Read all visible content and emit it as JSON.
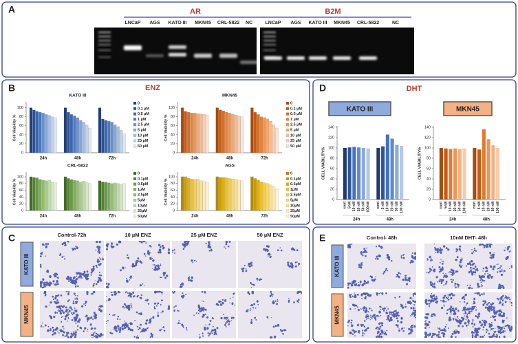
{
  "panel_labels": [
    "A",
    "B",
    "C",
    "D",
    "E"
  ],
  "gel": {
    "ar": {
      "title": "AR",
      "lanes": [
        "LNCaP",
        "AGS",
        "KATO III",
        "MKN45",
        "CRL-5822",
        "NC"
      ]
    },
    "b2m": {
      "title": "B2M",
      "lanes": [
        "LNCaP",
        "AGS",
        "KATO III",
        "MKN45",
        "CRL-5822",
        "NC"
      ]
    }
  },
  "panel_b_title": "ENZ",
  "panel_d_title": "DHT",
  "chart_data": [
    {
      "type": "bar",
      "title": "KATO III",
      "ylabel": "Cell Viability %",
      "categories": [
        "24h",
        "48h",
        "72h"
      ],
      "ylim": [
        0,
        110
      ],
      "yticks": [
        0,
        20,
        40,
        60,
        80,
        100
      ],
      "legend": "right",
      "series": [
        {
          "name": "0",
          "color": "#1f3f7a",
          "values": [
            100,
            100,
            100
          ]
        },
        {
          "name": "0.1 µM",
          "color": "#2b5296",
          "values": [
            95,
            90,
            75
          ]
        },
        {
          "name": "0.5 µM",
          "color": "#3a66b0",
          "values": [
            92,
            85,
            72
          ]
        },
        {
          "name": "1 µM",
          "color": "#4a78c4",
          "values": [
            90,
            82,
            70
          ]
        },
        {
          "name": "2.5 µM",
          "color": "#6890d0",
          "values": [
            88,
            78,
            68
          ]
        },
        {
          "name": "5 µM",
          "color": "#86a6da",
          "values": [
            85,
            72,
            62
          ]
        },
        {
          "name": "10 µM",
          "color": "#a5bde4",
          "values": [
            83,
            68,
            58
          ]
        },
        {
          "name": "25 µM",
          "color": "#c2d2ec",
          "values": [
            80,
            62,
            50
          ]
        },
        {
          "name": "50 µM",
          "color": "#dce6f5",
          "values": [
            78,
            55,
            42
          ]
        }
      ]
    },
    {
      "type": "bar",
      "title": "MKN45",
      "ylabel": "Cell Viability %",
      "categories": [
        "24h",
        "48h",
        "72h"
      ],
      "ylim": [
        0,
        110
      ],
      "yticks": [
        0,
        20,
        40,
        60,
        80,
        100
      ],
      "legend": "right",
      "series": [
        {
          "name": "0",
          "color": "#a84a0c",
          "values": [
            100,
            100,
            100
          ]
        },
        {
          "name": "0.1 µM",
          "color": "#c55a11",
          "values": [
            92,
            95,
            90
          ]
        },
        {
          "name": "0.5 µM",
          "color": "#d86e24",
          "values": [
            90,
            93,
            85
          ]
        },
        {
          "name": "1 µM",
          "color": "#e5823a",
          "values": [
            88,
            90,
            80
          ]
        },
        {
          "name": "2.5 µM",
          "color": "#ee9555",
          "values": [
            88,
            88,
            78
          ]
        },
        {
          "name": "5 µM",
          "color": "#f3a872",
          "values": [
            87,
            86,
            75
          ]
        },
        {
          "name": "10 µM",
          "color": "#f6bb90",
          "values": [
            86,
            84,
            70
          ]
        },
        {
          "name": "25 µM",
          "color": "#f9ceb0",
          "values": [
            85,
            82,
            62
          ]
        },
        {
          "name": "50 µM",
          "color": "#fce2d0",
          "values": [
            84,
            80,
            55
          ]
        }
      ]
    },
    {
      "type": "bar",
      "title": "CRL-5822",
      "ylabel": "Cell Viability %",
      "categories": [
        "24h",
        "48h",
        "72h"
      ],
      "ylim": [
        0,
        110
      ],
      "yticks": [
        0,
        20,
        40,
        60,
        80,
        100
      ],
      "legend": "right",
      "series": [
        {
          "name": "0",
          "color": "#3f6b22",
          "values": [
            100,
            100,
            88
          ]
        },
        {
          "name": "0.1µM",
          "color": "#548235",
          "values": [
            98,
            95,
            85
          ]
        },
        {
          "name": "0.5µM",
          "color": "#679a45",
          "values": [
            97,
            92,
            84
          ]
        },
        {
          "name": "1µM",
          "color": "#7cad59",
          "values": [
            92,
            90,
            82
          ]
        },
        {
          "name": "2.5µM",
          "color": "#93be72",
          "values": [
            90,
            88,
            80
          ]
        },
        {
          "name": "5µM",
          "color": "#a9cc8d",
          "values": [
            88,
            85,
            82
          ]
        },
        {
          "name": "10µM",
          "color": "#bfdaa8",
          "values": [
            90,
            87,
            80
          ]
        },
        {
          "name": "25µM",
          "color": "#d4e7c4",
          "values": [
            85,
            83,
            78
          ]
        },
        {
          "name": "50µM",
          "color": "#e7f2de",
          "values": [
            82,
            80,
            80
          ]
        }
      ]
    },
    {
      "type": "bar",
      "title": "AGS",
      "ylabel": "Cell Viability %",
      "categories": [
        "24h",
        "48h",
        "72h"
      ],
      "ylim": [
        0,
        110
      ],
      "yticks": [
        0,
        20,
        40,
        60,
        80,
        100
      ],
      "legend": "right",
      "series": [
        {
          "name": "0",
          "color": "#b58900",
          "values": [
            100,
            100,
            100
          ]
        },
        {
          "name": "0.1µM",
          "color": "#cc9c00",
          "values": [
            100,
            98,
            95
          ]
        },
        {
          "name": "0.5µM",
          "color": "#e0ae0c",
          "values": [
            96,
            98,
            90
          ]
        },
        {
          "name": "1µM",
          "color": "#efbf2a",
          "values": [
            93,
            97,
            85
          ]
        },
        {
          "name": "2.5µM",
          "color": "#f5cd50",
          "values": [
            92,
            95,
            82
          ]
        },
        {
          "name": "5µM",
          "color": "#f8d872",
          "values": [
            93,
            93,
            80
          ]
        },
        {
          "name": "10µM",
          "color": "#fae293",
          "values": [
            88,
            92,
            76
          ]
        },
        {
          "name": "25µM",
          "color": "#fcebb3",
          "values": [
            86,
            90,
            72
          ]
        },
        {
          "name": "50µM",
          "color": "#fef4d4",
          "values": [
            85,
            88,
            65
          ]
        }
      ]
    },
    {
      "type": "bar",
      "title": "KATO III",
      "title_color": "#8faadc",
      "ylabel": "CELL VIABILITY%",
      "categories": [
        "cont",
        "5nM",
        "10 nM",
        "20 nM",
        "50 nM",
        "100nM",
        "cont",
        "5 nM",
        "10 nM",
        "20 nM",
        "50 nM",
        "100 nM"
      ],
      "groups": [
        "24h",
        "48h"
      ],
      "values": [
        100,
        101,
        102,
        101,
        100,
        99,
        100,
        103,
        126,
        118,
        106,
        104
      ],
      "colors": [
        "#1f3a6e",
        "#2e5597",
        "#4472c4",
        "#5b8bd6",
        "#8eaadb",
        "#b4c7e7",
        "#1f3a6e",
        "#2e5597",
        "#4472c4",
        "#5b8bd6",
        "#8eaadb",
        "#b4c7e7"
      ],
      "ylim": [
        0,
        140
      ],
      "yticks": [
        0,
        20,
        40,
        60,
        80,
        100,
        120,
        140
      ]
    },
    {
      "type": "bar",
      "title": "MKN45",
      "title_color": "#f4b183",
      "ylabel": "CELL VIABILITY%",
      "categories": [
        "cont",
        "5nM",
        "10 nM",
        "20 nM",
        "50 nM",
        "100 nM",
        "cont",
        "5 nM",
        "10 nM",
        "20 nM",
        "50 nM",
        "100 nM"
      ],
      "groups": [
        "24h",
        "48h"
      ],
      "values": [
        100,
        99,
        98,
        99,
        98,
        99,
        100,
        97,
        136,
        117,
        105,
        100
      ],
      "colors": [
        "#a84a0c",
        "#c55a11",
        "#e07a2e",
        "#ee9555",
        "#f4b183",
        "#f8cbad",
        "#a84a0c",
        "#c55a11",
        "#e07a2e",
        "#ee9555",
        "#f4b183",
        "#f8cbad"
      ],
      "ylim": [
        0,
        140
      ],
      "yticks": [
        0,
        20,
        40,
        60,
        80,
        100,
        120,
        140
      ]
    }
  ],
  "micrographs_enz": {
    "columns": [
      "Control-72h",
      "10 µM ENZ",
      "25 µM ENZ",
      "50 µM ENZ"
    ],
    "rows": [
      "KATO III",
      "MKN45"
    ]
  },
  "micrographs_dht": {
    "columns": [
      "Control- 48h",
      "10nM DHT- 48h"
    ],
    "rows": [
      "KATO III",
      "MKN45"
    ]
  }
}
